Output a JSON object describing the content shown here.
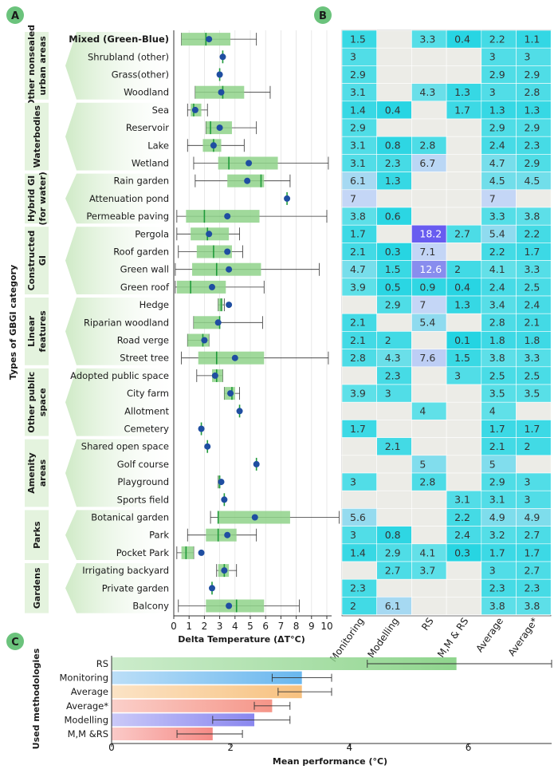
{
  "panel_labels": {
    "a": "A",
    "b": "B",
    "c": "C"
  },
  "colors": {
    "panel_label_bg": "#6bc37c",
    "box_fill": "#8fd28a",
    "median": "#1f9a3a",
    "mean_dot": "#1f4ea1",
    "group_fill": "#e4f3de",
    "heat_empty": "#ecece7"
  },
  "panel_a": {
    "ylabel": "Types of GBGI category",
    "xlabel": "Delta Temperature (ΔT°C)",
    "groups": [
      {
        "label": "Other nonsealed urban areas",
        "lines": [
          "Other nonsealed",
          "urban areas"
        ],
        "start": 0,
        "end": 3
      },
      {
        "label": "Waterbodies",
        "lines": [
          "Waterbodies"
        ],
        "start": 4,
        "end": 7
      },
      {
        "label": "Hybrid GI (for water)",
        "lines": [
          "Hybrid GI",
          "(for water)"
        ],
        "start": 8,
        "end": 10
      },
      {
        "label": "Constructed GI",
        "lines": [
          "Constructed",
          "GI"
        ],
        "start": 11,
        "end": 14
      },
      {
        "label": "Linear features",
        "lines": [
          "Linear",
          "features"
        ],
        "start": 15,
        "end": 18
      },
      {
        "label": "Other public space",
        "lines": [
          "Other public",
          "space"
        ],
        "start": 19,
        "end": 22
      },
      {
        "label": "Amenity areas",
        "lines": [
          "Amenity",
          "areas"
        ],
        "start": 23,
        "end": 26
      },
      {
        "label": "Parks",
        "lines": [
          "Parks"
        ],
        "start": 27,
        "end": 29
      },
      {
        "label": "Gardens",
        "lines": [
          "Gardens"
        ],
        "start": 30,
        "end": 32
      }
    ]
  },
  "panel_c": {
    "ylabel": "Used methodologies",
    "xlabel": "Mean performance (°C)"
  },
  "chart_data": [
    {
      "type": "box",
      "panel": "A",
      "xlabel": "Delta Temperature (ΔT°C)",
      "ylabel": "Types of GBGI category",
      "xlim": [
        0,
        10
      ],
      "xticks": [
        0,
        1,
        2,
        3,
        4,
        5,
        6,
        7,
        8,
        9,
        10
      ],
      "categories": [
        "Mixed (Green-Blue)",
        "Shrubland (other)",
        "Grass(other)",
        "Woodland",
        "Sea",
        "Reservoir",
        "Lake",
        "Wetland",
        "Rain garden",
        "Attenuation pond",
        "Permeable paving",
        "Pergola",
        "Roof garden",
        "Green wall",
        "Green roof",
        "Hedge",
        "Riparian woodland",
        "Road verge",
        "Street tree",
        "Adopted public space",
        "City farm",
        "Allotment",
        "Cemetery",
        "Shared open space",
        "Golf course",
        "Playground",
        "Sports field",
        "Botanical garden",
        "Park",
        "Pocket Park",
        "Irrigating backyard",
        "Private garden",
        "Balcony"
      ],
      "series": [
        {
          "min": 0.5,
          "q1": 0.5,
          "median": 2.1,
          "q3": 3.7,
          "max": 5.4,
          "mean": 2.3
        },
        {
          "min": 3.2,
          "q1": 3.2,
          "median": 3.2,
          "q3": 3.2,
          "max": 3.2,
          "mean": 3.2
        },
        {
          "min": 3.0,
          "q1": 3.0,
          "median": 3.0,
          "q3": 3.0,
          "max": 3.0,
          "mean": 3.0
        },
        {
          "min": 1.4,
          "q1": 1.4,
          "median": 3.2,
          "q3": 4.6,
          "max": 6.3,
          "mean": 3.1
        },
        {
          "min": 0.9,
          "q1": 1.1,
          "median": 1.3,
          "q3": 1.8,
          "max": 2.2,
          "mean": 1.4
        },
        {
          "min": 2.1,
          "q1": 2.1,
          "median": 2.4,
          "q3": 3.8,
          "max": 5.4,
          "mean": 3.0
        },
        {
          "min": 0.9,
          "q1": 1.9,
          "median": 2.6,
          "q3": 3.1,
          "max": 4.6,
          "mean": 2.6
        },
        {
          "min": 1.3,
          "q1": 2.9,
          "median": 3.6,
          "q3": 6.8,
          "max": 10.1,
          "mean": 4.9
        },
        {
          "min": 1.4,
          "q1": 3.5,
          "median": 5.7,
          "q3": 5.9,
          "max": 7.6,
          "mean": 4.8
        },
        {
          "min": 7.4,
          "q1": 7.4,
          "median": 7.4,
          "q3": 7.4,
          "max": 7.4,
          "mean": 7.4
        },
        {
          "min": 0.2,
          "q1": 0.8,
          "median": 2.0,
          "q3": 5.6,
          "max": 10.0,
          "mean": 3.5
        },
        {
          "min": 0.2,
          "q1": 1.1,
          "median": 2.2,
          "q3": 3.6,
          "max": 4.3,
          "mean": 2.3
        },
        {
          "min": 0.3,
          "q1": 1.5,
          "median": 2.6,
          "q3": 3.8,
          "max": 4.5,
          "mean": 3.5
        },
        {
          "min": 0.1,
          "q1": 1.2,
          "median": 2.8,
          "q3": 5.7,
          "max": 9.5,
          "mean": 3.6
        },
        {
          "min": 0.1,
          "q1": 0.2,
          "median": 1.1,
          "q3": 3.4,
          "max": 5.9,
          "mean": 2.5
        },
        {
          "min": 2.9,
          "q1": 2.9,
          "median": 3.1,
          "q3": 3.2,
          "max": 3.3,
          "mean": 3.6
        },
        {
          "min": 1.3,
          "q1": 1.3,
          "median": 3.0,
          "q3": 3.0,
          "max": 5.8,
          "mean": 2.9
        },
        {
          "min": 0.9,
          "q1": 0.9,
          "median": 1.9,
          "q3": 2.3,
          "max": 2.3,
          "mean": 2.0
        },
        {
          "min": 0.5,
          "q1": 1.6,
          "median": 2.8,
          "q3": 5.9,
          "max": 10.1,
          "mean": 4.0
        },
        {
          "min": 1.5,
          "q1": 2.5,
          "median": 2.8,
          "q3": 3.2,
          "max": 3.2,
          "mean": 2.7
        },
        {
          "min": 3.3,
          "q1": 3.3,
          "median": 3.8,
          "q3": 4.0,
          "max": 4.3,
          "mean": 3.7
        },
        {
          "min": 4.3,
          "q1": 4.3,
          "median": 4.3,
          "q3": 4.3,
          "max": 4.3,
          "mean": 4.3
        },
        {
          "min": 1.8,
          "q1": 1.8,
          "median": 1.8,
          "q3": 1.8,
          "max": 1.8,
          "mean": 1.8
        },
        {
          "min": 2.2,
          "q1": 2.2,
          "median": 2.2,
          "q3": 2.2,
          "max": 2.2,
          "mean": 2.2
        },
        {
          "min": 5.4,
          "q1": 5.4,
          "median": 5.4,
          "q3": 5.4,
          "max": 5.4,
          "mean": 5.4
        },
        {
          "min": 2.9,
          "q1": 2.9,
          "median": 3.0,
          "q3": 3.0,
          "max": 3.0,
          "mean": 3.1
        },
        {
          "min": 3.3,
          "q1": 3.3,
          "median": 3.3,
          "q3": 3.3,
          "max": 3.3,
          "mean": 3.3
        },
        {
          "min": 2.4,
          "q1": 2.9,
          "median": 2.9,
          "q3": 7.6,
          "max": 10.8,
          "mean": 5.3
        },
        {
          "min": 0.9,
          "q1": 2.1,
          "median": 2.9,
          "q3": 4.1,
          "max": 5.4,
          "mean": 3.5
        },
        {
          "min": 0.2,
          "q1": 0.5,
          "median": 0.8,
          "q3": 1.3,
          "max": 1.3,
          "mean": 1.8
        },
        {
          "min": 2.8,
          "q1": 2.9,
          "median": 3.3,
          "q3": 3.6,
          "max": 4.1,
          "mean": 3.3
        },
        {
          "min": 2.5,
          "q1": 2.5,
          "median": 2.5,
          "q3": 2.5,
          "max": 2.5,
          "mean": 2.5
        },
        {
          "min": 0.3,
          "q1": 2.1,
          "median": 4.1,
          "q3": 5.9,
          "max": 8.2,
          "mean": 3.6
        }
      ]
    },
    {
      "type": "heatmap",
      "panel": "B",
      "columns": [
        "Monitoring",
        "Modelling",
        "RS",
        "M,M & RS",
        "Average",
        "Average*"
      ],
      "rows": [
        [
          1.5,
          null,
          3.3,
          0.4,
          2.2,
          1.1
        ],
        [
          3,
          null,
          null,
          null,
          3,
          3
        ],
        [
          2.9,
          null,
          null,
          null,
          2.9,
          2.9
        ],
        [
          3.1,
          null,
          4.3,
          1.3,
          3,
          2.8
        ],
        [
          1.4,
          0.4,
          null,
          1.7,
          1.3,
          1.3
        ],
        [
          2.9,
          null,
          null,
          null,
          2.9,
          2.9
        ],
        [
          3.1,
          0.8,
          2.8,
          null,
          2.4,
          2.3
        ],
        [
          3.1,
          2.3,
          6.7,
          null,
          4.7,
          2.9
        ],
        [
          6.1,
          1.3,
          null,
          null,
          4.5,
          4.5
        ],
        [
          7,
          null,
          null,
          null,
          7,
          null
        ],
        [
          3.8,
          0.6,
          null,
          null,
          3.3,
          3.8
        ],
        [
          1.7,
          null,
          18.2,
          2.7,
          5.4,
          2.2
        ],
        [
          2.1,
          0.3,
          7.1,
          null,
          2.2,
          1.7
        ],
        [
          4.7,
          1.5,
          12.6,
          2,
          4.1,
          3.3
        ],
        [
          3.9,
          0.5,
          0.9,
          0.4,
          2.4,
          2.5
        ],
        [
          null,
          2.9,
          7,
          1.3,
          3.4,
          2.4
        ],
        [
          2.1,
          null,
          5.4,
          null,
          2.8,
          2.1
        ],
        [
          2.1,
          2,
          null,
          0.1,
          1.8,
          1.8
        ],
        [
          2.8,
          4.3,
          7.6,
          1.5,
          3.8,
          3.3
        ],
        [
          null,
          2.3,
          null,
          3,
          2.5,
          2.5
        ],
        [
          3.9,
          3,
          null,
          null,
          3.5,
          3.5
        ],
        [
          null,
          null,
          4,
          null,
          4,
          null
        ],
        [
          1.7,
          null,
          null,
          null,
          1.7,
          1.7
        ],
        [
          null,
          2.1,
          null,
          null,
          2.1,
          2
        ],
        [
          null,
          null,
          5,
          null,
          5,
          null
        ],
        [
          3,
          null,
          2.8,
          null,
          2.9,
          3
        ],
        [
          null,
          null,
          null,
          3.1,
          3.1,
          3
        ],
        [
          5.6,
          null,
          null,
          2.2,
          4.9,
          4.9
        ],
        [
          3,
          0.8,
          null,
          2.4,
          3.2,
          2.7
        ],
        [
          1.4,
          2.9,
          4.1,
          0.3,
          1.7,
          1.7
        ],
        [
          null,
          2.7,
          3.7,
          null,
          3,
          2.7
        ],
        [
          2.3,
          null,
          null,
          null,
          2.3,
          2.3
        ],
        [
          2,
          6.1,
          null,
          null,
          3.8,
          3.8
        ]
      ]
    },
    {
      "type": "bar",
      "panel": "C",
      "orientation": "horizontal",
      "xlabel": "Mean performance (°C)",
      "ylabel": "Used methodologies",
      "xlim": [
        0,
        7.4
      ],
      "xticks": [
        0,
        2,
        4,
        6
      ],
      "categories": [
        "RS",
        "Monitoring",
        "Average",
        "Average*",
        "Modelling",
        "M,M &RS"
      ],
      "values": [
        5.8,
        3.2,
        3.2,
        2.7,
        2.4,
        1.7
      ],
      "error_low": [
        4.3,
        2.7,
        2.8,
        2.4,
        1.7,
        1.1
      ],
      "error_high": [
        7.4,
        3.7,
        3.7,
        3.0,
        3.0,
        2.2
      ],
      "colors": [
        "#8fd58d",
        "#69b7ee",
        "#f7c17f",
        "#f59588",
        "#8a87ef",
        "#f58a85"
      ]
    }
  ]
}
